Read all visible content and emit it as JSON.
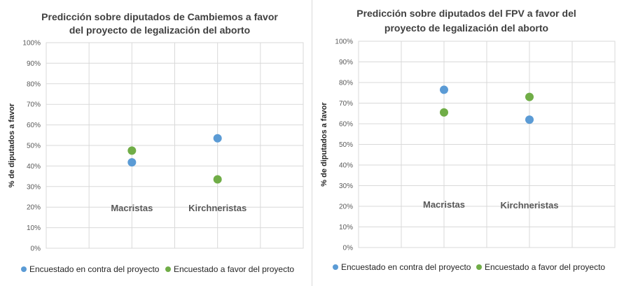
{
  "chart_data": [
    {
      "type": "scatter",
      "title": [
        "Predicción sobre diputados de Cambiemos a favor",
        "del proyecto de legalización del aborto"
      ],
      "ylabel": "% de diputados a favor",
      "xlabel": "",
      "ylim": [
        0,
        100
      ],
      "yticks": [
        "0%",
        "10%",
        "20%",
        "30%",
        "40%",
        "50%",
        "60%",
        "70%",
        "80%",
        "90%",
        "100%"
      ],
      "categories": [
        "Macristas",
        "Kirchneristas"
      ],
      "series": [
        {
          "name": "Encuestado en contra del proyecto",
          "color": "#5b9bd5",
          "values": [
            41.8,
            53.5
          ]
        },
        {
          "name": "Encuestado a favor del proyecto",
          "color": "#70ad47",
          "values": [
            47.5,
            33.5
          ]
        }
      ],
      "grid": true,
      "legend": "bottom"
    },
    {
      "type": "scatter",
      "title": [
        "Predicción sobre diputados del FPV a favor del",
        "proyecto de legalización del aborto"
      ],
      "ylabel": "% de diputados a favor",
      "xlabel": "",
      "ylim": [
        0,
        100
      ],
      "yticks": [
        "0%",
        "10%",
        "20%",
        "30%",
        "40%",
        "50%",
        "60%",
        "70%",
        "80%",
        "90%",
        "100%"
      ],
      "categories": [
        "Macristas",
        "Kirchneristas"
      ],
      "series": [
        {
          "name": "Encuestado en contra del proyecto",
          "color": "#5b9bd5",
          "values": [
            76.5,
            62
          ]
        },
        {
          "name": "Encuestado a favor del proyecto",
          "color": "#70ad47",
          "values": [
            65.5,
            73
          ]
        }
      ],
      "grid": true,
      "legend": "bottom"
    }
  ]
}
